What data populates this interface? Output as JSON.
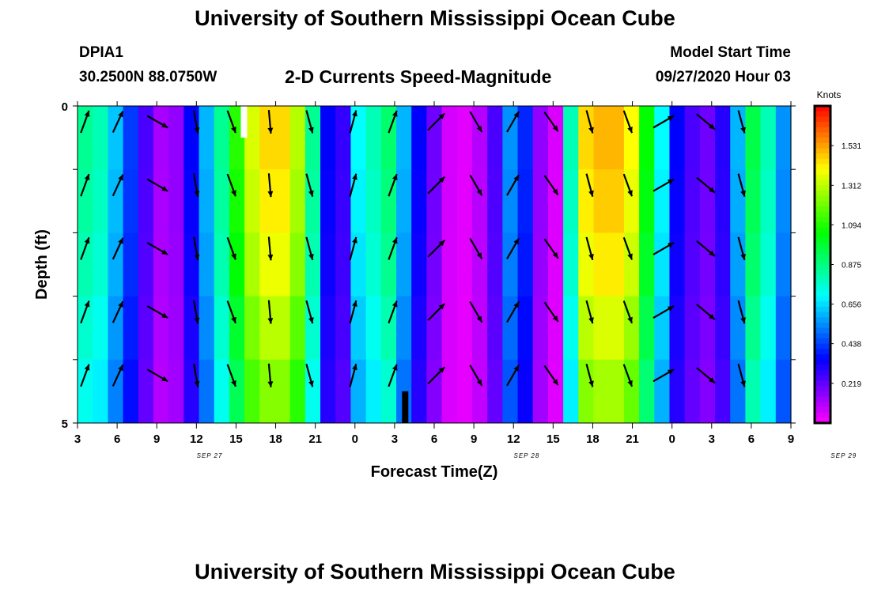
{
  "header": {
    "title": "University of Southern Mississippi Ocean Cube",
    "station": "DPIA1",
    "coords": "30.2500N 88.0750W",
    "main_title": "2-D Currents Speed-Magnitude",
    "model_label": "Model Start Time",
    "model_time": "09/27/2020 Hour 03"
  },
  "footer": {
    "title": "University of Southern Mississippi Ocean Cube"
  },
  "chart_data": {
    "type": "heatmap",
    "title": "2-D Currents Speed-Magnitude",
    "xlabel": "Forecast Time(Z)",
    "ylabel": "Depth (ft)",
    "x_tick_labels": [
      "3",
      "6",
      "9",
      "12",
      "15",
      "18",
      "21",
      "0",
      "3",
      "6",
      "9",
      "12",
      "15",
      "18",
      "21",
      "0",
      "3",
      "6",
      "9"
    ],
    "date_labels": [
      {
        "label": "SEP 27",
        "hours_from_start": 10
      },
      {
        "label": "SEP 28",
        "hours_from_start": 34
      },
      {
        "label": "SEP 29",
        "hours_from_start": 58
      }
    ],
    "x_range_hours": [
      0,
      54
    ],
    "y_tick_labels": [
      "0",
      "5"
    ],
    "y_range_ft": [
      0,
      5
    ],
    "depth_levels_ft": [
      0,
      1,
      2,
      3,
      4,
      5
    ],
    "colorbar": {
      "title": "Knots",
      "range": [
        0,
        1.75
      ],
      "ticks": [
        "1.531",
        "1.312",
        "1.094",
        "0.875",
        "0.656",
        "0.438",
        "0.219"
      ]
    },
    "speed_profile_knots": [
      0.85,
      0.8,
      0.62,
      0.43,
      0.25,
      0.12,
      0.15,
      0.35,
      0.6,
      0.85,
      1.1,
      1.35,
      1.45,
      1.45,
      1.3,
      0.85,
      0.35,
      0.28,
      0.7,
      0.8,
      0.9,
      0.6,
      0.35,
      0.2,
      0.06,
      0.04,
      0.1,
      0.25,
      0.55,
      0.4,
      0.15,
      0.05,
      0.8,
      1.45,
      1.5,
      1.5,
      1.4,
      1.05,
      0.7,
      0.35,
      0.25,
      0.2,
      0.3,
      0.6,
      0.95,
      0.8,
      0.55
    ],
    "speed_profile_note": "near-surface speed (knots), sampled every ~1.15 h from 3Z Sep 27 to 9Z Sep 29",
    "depth_speed_factors": [
      1.0,
      0.98,
      0.95,
      0.9,
      0.85,
      0.8
    ],
    "arrow_columns": [
      {
        "hours": 0.2,
        "dir_deg": 20
      },
      {
        "hours": 2.7,
        "dir_deg": 25
      },
      {
        "hours": 5.7,
        "dir_deg": 120
      },
      {
        "hours": 8.6,
        "dir_deg": 170
      },
      {
        "hours": 11.3,
        "dir_deg": 160
      },
      {
        "hours": 14.2,
        "dir_deg": 175
      },
      {
        "hours": 17.2,
        "dir_deg": 165
      },
      {
        "hours": 20.5,
        "dir_deg": 15
      },
      {
        "hours": 23.5,
        "dir_deg": 20
      },
      {
        "hours": 26.8,
        "dir_deg": 45
      },
      {
        "hours": 29.8,
        "dir_deg": 150
      },
      {
        "hours": 32.6,
        "dir_deg": 30
      },
      {
        "hours": 35.5,
        "dir_deg": 145
      },
      {
        "hours": 38.4,
        "dir_deg": 165
      },
      {
        "hours": 41.3,
        "dir_deg": 160
      },
      {
        "hours": 44.0,
        "dir_deg": 60
      },
      {
        "hours": 47.2,
        "dir_deg": 130
      },
      {
        "hours": 49.9,
        "dir_deg": 165
      }
    ],
    "markers": [
      {
        "hours": 12.6,
        "depth_from": 0,
        "depth_to": 0.5,
        "color": "#ffffff"
      },
      {
        "hours": 24.8,
        "depth_from": 4.5,
        "depth_to": 5,
        "color": "#000000"
      }
    ]
  }
}
